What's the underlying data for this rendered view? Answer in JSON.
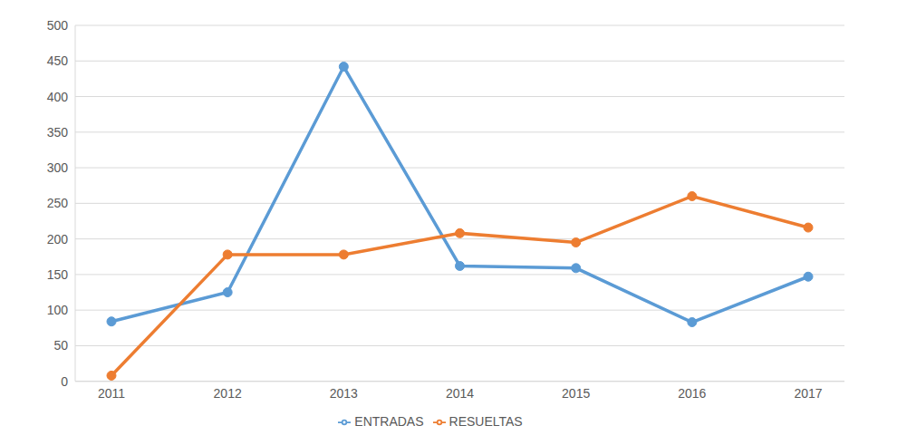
{
  "chart_data": {
    "type": "line",
    "categories": [
      "2011",
      "2012",
      "2013",
      "2014",
      "2015",
      "2016",
      "2017"
    ],
    "series": [
      {
        "name": "ENTRADAS",
        "color": "#5b9bd5",
        "values": [
          84,
          125,
          442,
          162,
          159,
          83,
          147
        ],
        "marker": "circle"
      },
      {
        "name": "RESUELTAS",
        "color": "#ed7d31",
        "values": [
          8,
          178,
          178,
          208,
          195,
          260,
          216
        ],
        "marker": "circle"
      }
    ],
    "ylim": [
      0,
      500
    ],
    "yticks": [
      0,
      50,
      100,
      150,
      200,
      250,
      300,
      350,
      400,
      450,
      500
    ],
    "grid": true,
    "legend": "bottom"
  }
}
